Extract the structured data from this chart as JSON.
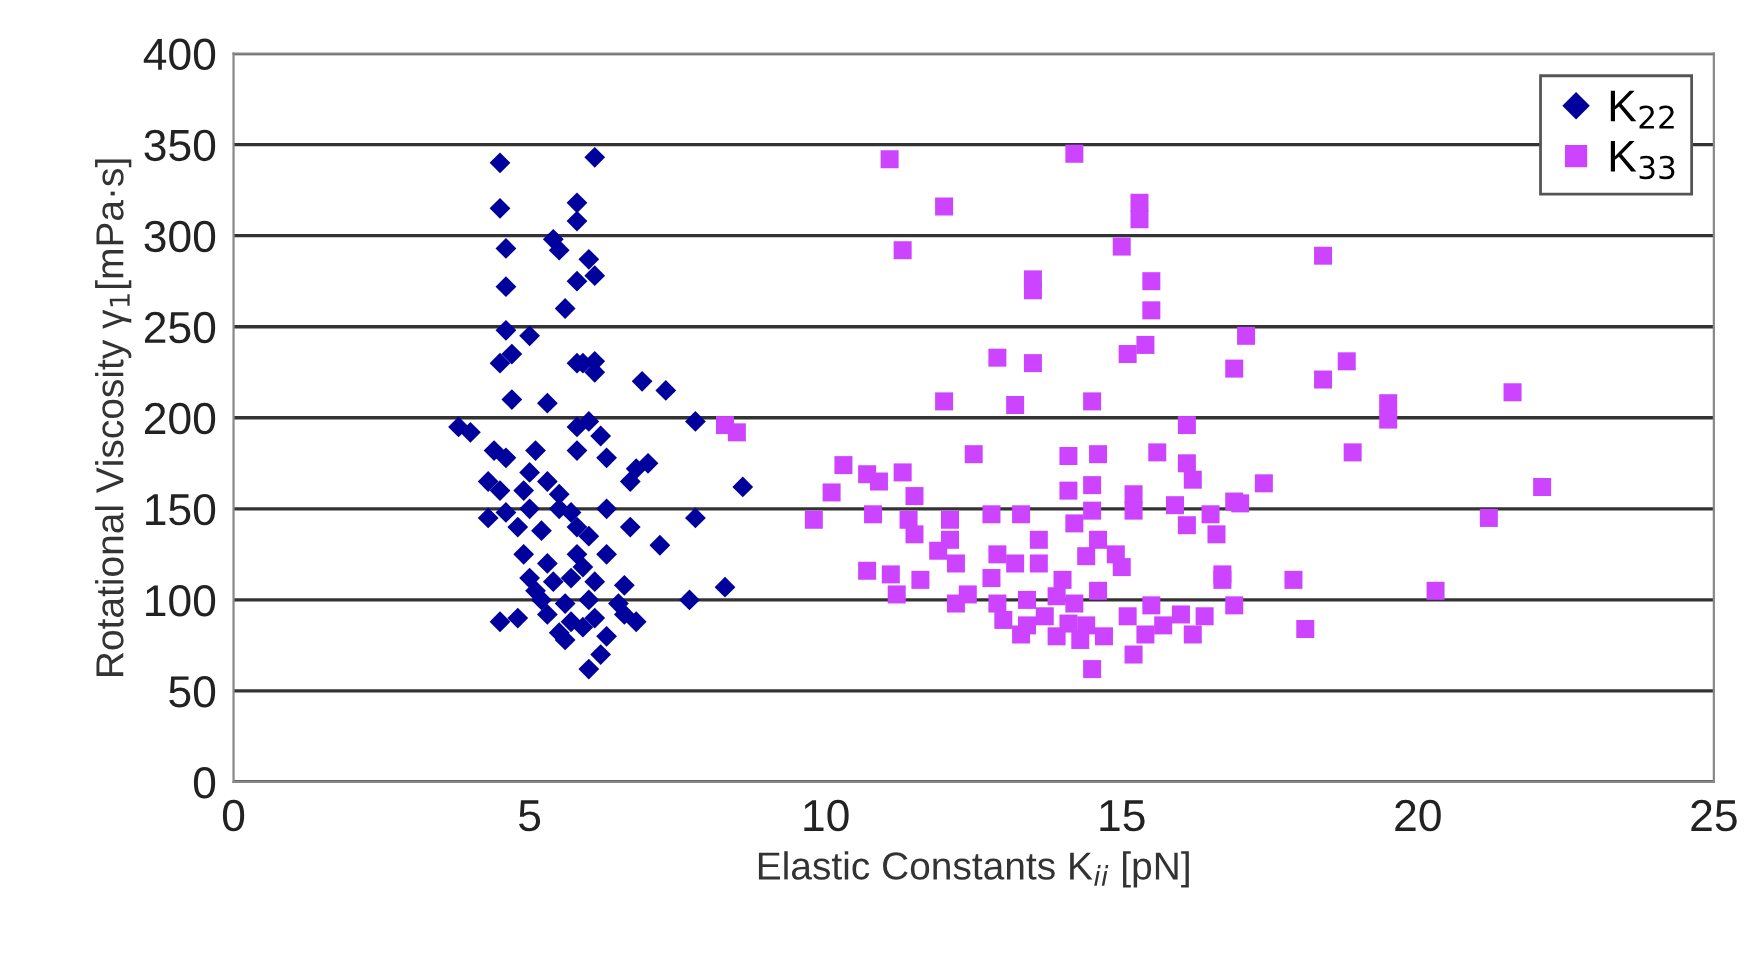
{
  "chart_data": {
    "type": "scatter",
    "xlabel": "Elastic Constants K$_{ii}$ [pN]",
    "ylabel": "Rotational Viscosity γ$_{1}$[mPa·s]",
    "xlim": [
      0,
      25
    ],
    "xticks": [
      0,
      5,
      10,
      15,
      20,
      25
    ],
    "ylim": [
      0,
      400
    ],
    "yticks": [
      0,
      50,
      100,
      150,
      200,
      250,
      300,
      350,
      400
    ],
    "grid": "y",
    "legend": "top right",
    "series": [
      {
        "name": "K$_{22}$",
        "color": "#00009c",
        "marker": "diamond",
        "x": [
          4.5,
          6.1,
          4.5,
          5.8,
          5.8,
          4.6,
          5.4,
          5.5,
          6.0,
          4.6,
          5.8,
          6.1,
          5.6,
          4.6,
          5.9,
          6.1,
          4.7,
          4.5,
          5.0,
          5.8,
          6.1,
          4.7,
          5.3,
          6.0,
          5.8,
          4.4,
          4.6,
          5.1,
          5.8,
          6.9,
          7.3,
          7.8,
          8.6,
          3.8,
          4.0,
          6.2,
          6.3,
          6.8,
          6.7,
          7.0,
          5.0,
          4.3,
          4.5,
          4.9,
          5.3,
          5.5,
          4.6,
          5.0,
          5.5,
          5.7,
          6.3,
          4.3,
          4.8,
          5.2,
          6.0,
          6.7,
          7.8,
          7.2,
          4.9,
          5.3,
          5.8,
          6.3,
          5.0,
          5.4,
          5.7,
          6.1,
          6.6,
          5.2,
          5.6,
          6.0,
          6.5,
          7.7,
          8.3,
          4.8,
          5.3,
          5.7,
          6.1,
          6.6,
          5.5,
          5.9,
          6.3,
          6.8,
          6.0,
          6.2,
          5.6,
          5.1,
          5.8,
          5.9,
          4.5
        ],
        "values": [
          340,
          343,
          315,
          318,
          308,
          293,
          298,
          292,
          287,
          272,
          275,
          278,
          260,
          248,
          230,
          231,
          235,
          230,
          245,
          230,
          225,
          210,
          208,
          198,
          195,
          182,
          178,
          182,
          182,
          220,
          215,
          198,
          162,
          195,
          192,
          190,
          178,
          172,
          165,
          175,
          170,
          165,
          160,
          160,
          165,
          158,
          148,
          150,
          150,
          148,
          150,
          145,
          140,
          138,
          135,
          140,
          145,
          130,
          125,
          120,
          125,
          125,
          112,
          110,
          112,
          110,
          108,
          100,
          98,
          100,
          98,
          100,
          107,
          90,
          92,
          88,
          90,
          92,
          82,
          85,
          80,
          88,
          62,
          70,
          78,
          105,
          140,
          118,
          88
        ]
      },
      {
        "name": "K$_{33}$",
        "color": "#cc44ff",
        "marker": "square",
        "x": [
          11.08,
          14.2,
          12.0,
          15.3,
          15.3,
          11.3,
          15.0,
          13.5,
          13.5,
          15.5,
          15.5,
          17.1,
          15.4,
          15.1,
          12.9,
          13.5,
          16.9,
          12.0,
          13.2,
          14.5,
          16.1,
          12.5,
          14.1,
          14.6,
          15.6,
          16.1,
          16.2,
          10.3,
          10.7,
          10.9,
          11.3,
          10.1,
          11.5,
          17.4,
          16.9,
          14.1,
          14.5,
          15.2,
          9.8,
          10.8,
          11.4,
          12.1,
          12.8,
          13.3,
          14.5,
          15.2,
          15.9,
          16.5,
          11.5,
          12.1,
          13.6,
          14.2,
          14.6,
          16.1,
          16.6,
          11.9,
          12.9,
          14.4,
          14.9,
          10.7,
          11.1,
          11.6,
          12.2,
          13.2,
          13.6,
          15.0,
          16.7,
          11.2,
          12.4,
          12.8,
          14.0,
          14.6,
          16.7,
          12.2,
          12.9,
          13.4,
          13.9,
          14.2,
          15.5,
          16.0,
          16.4,
          16.9,
          13.0,
          13.4,
          13.7,
          14.1,
          14.4,
          15.1,
          15.4,
          15.7,
          16.2,
          13.3,
          13.9,
          14.3,
          14.7,
          15.2,
          14.5,
          18.4,
          18.8,
          18.4,
          21.6,
          19.5,
          19.5,
          18.9,
          22.1,
          17.0,
          21.2,
          17.9,
          20.3,
          18.1,
          8.3,
          8.5
        ],
        "values": [
          342,
          345,
          316,
          318,
          309,
          292,
          294,
          276,
          270,
          275,
          259,
          245,
          240,
          235,
          233,
          230,
          227,
          209,
          207,
          209,
          196,
          180,
          179,
          180,
          181,
          175,
          166,
          174,
          169,
          165,
          170,
          159,
          157,
          164,
          154,
          160,
          163,
          158,
          144,
          147,
          144,
          144,
          147,
          147,
          149,
          149,
          152,
          147,
          136,
          133,
          133,
          142,
          133,
          141,
          136,
          127,
          125,
          124,
          125,
          116,
          114,
          111,
          120,
          120,
          120,
          118,
          114,
          103,
          103,
          112,
          111,
          105,
          111,
          98,
          98,
          100,
          102,
          98,
          97,
          92,
          91,
          97,
          89,
          86,
          91,
          87,
          86,
          91,
          81,
          86,
          81,
          81,
          80,
          78,
          80,
          70,
          62,
          289,
          231,
          221,
          214,
          208,
          199,
          181,
          162,
          153,
          145,
          111,
          105,
          84,
          196,
          192
        ]
      }
    ]
  }
}
